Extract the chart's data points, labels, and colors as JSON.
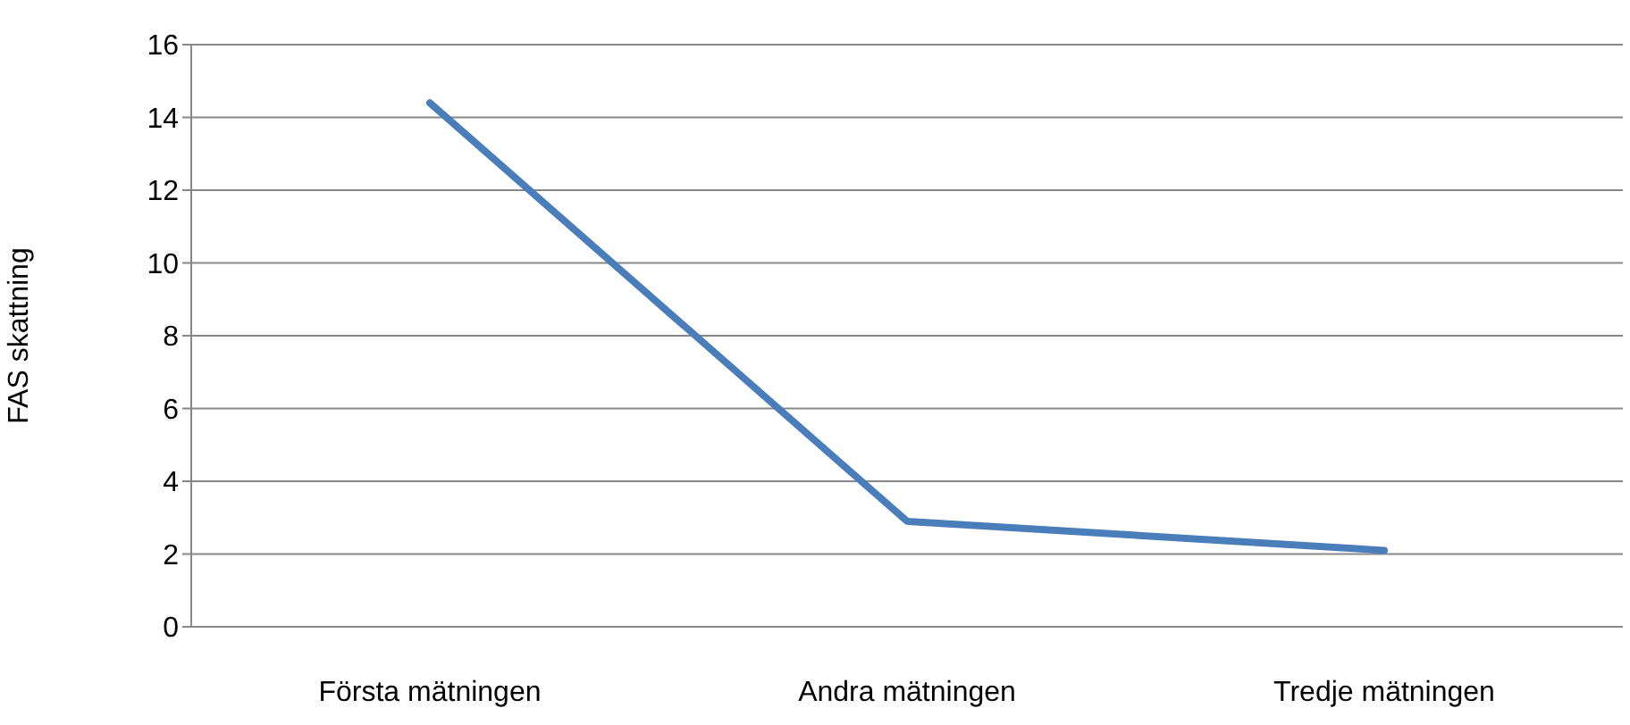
{
  "chart_data": {
    "type": "line",
    "ylabel": "FAS skattning",
    "categories": [
      "Första mätningen",
      "Andra mätningen",
      "Tredje mätningen"
    ],
    "series": [
      {
        "color": "#4a7ebb",
        "values": [
          14.4,
          2.9,
          2.1
        ]
      }
    ],
    "ylim": [
      0,
      16
    ],
    "yticks": [
      0,
      2,
      4,
      6,
      8,
      10,
      12,
      14,
      16
    ],
    "grid": "y",
    "legend": false,
    "marker": "none",
    "line_style": "solid"
  }
}
